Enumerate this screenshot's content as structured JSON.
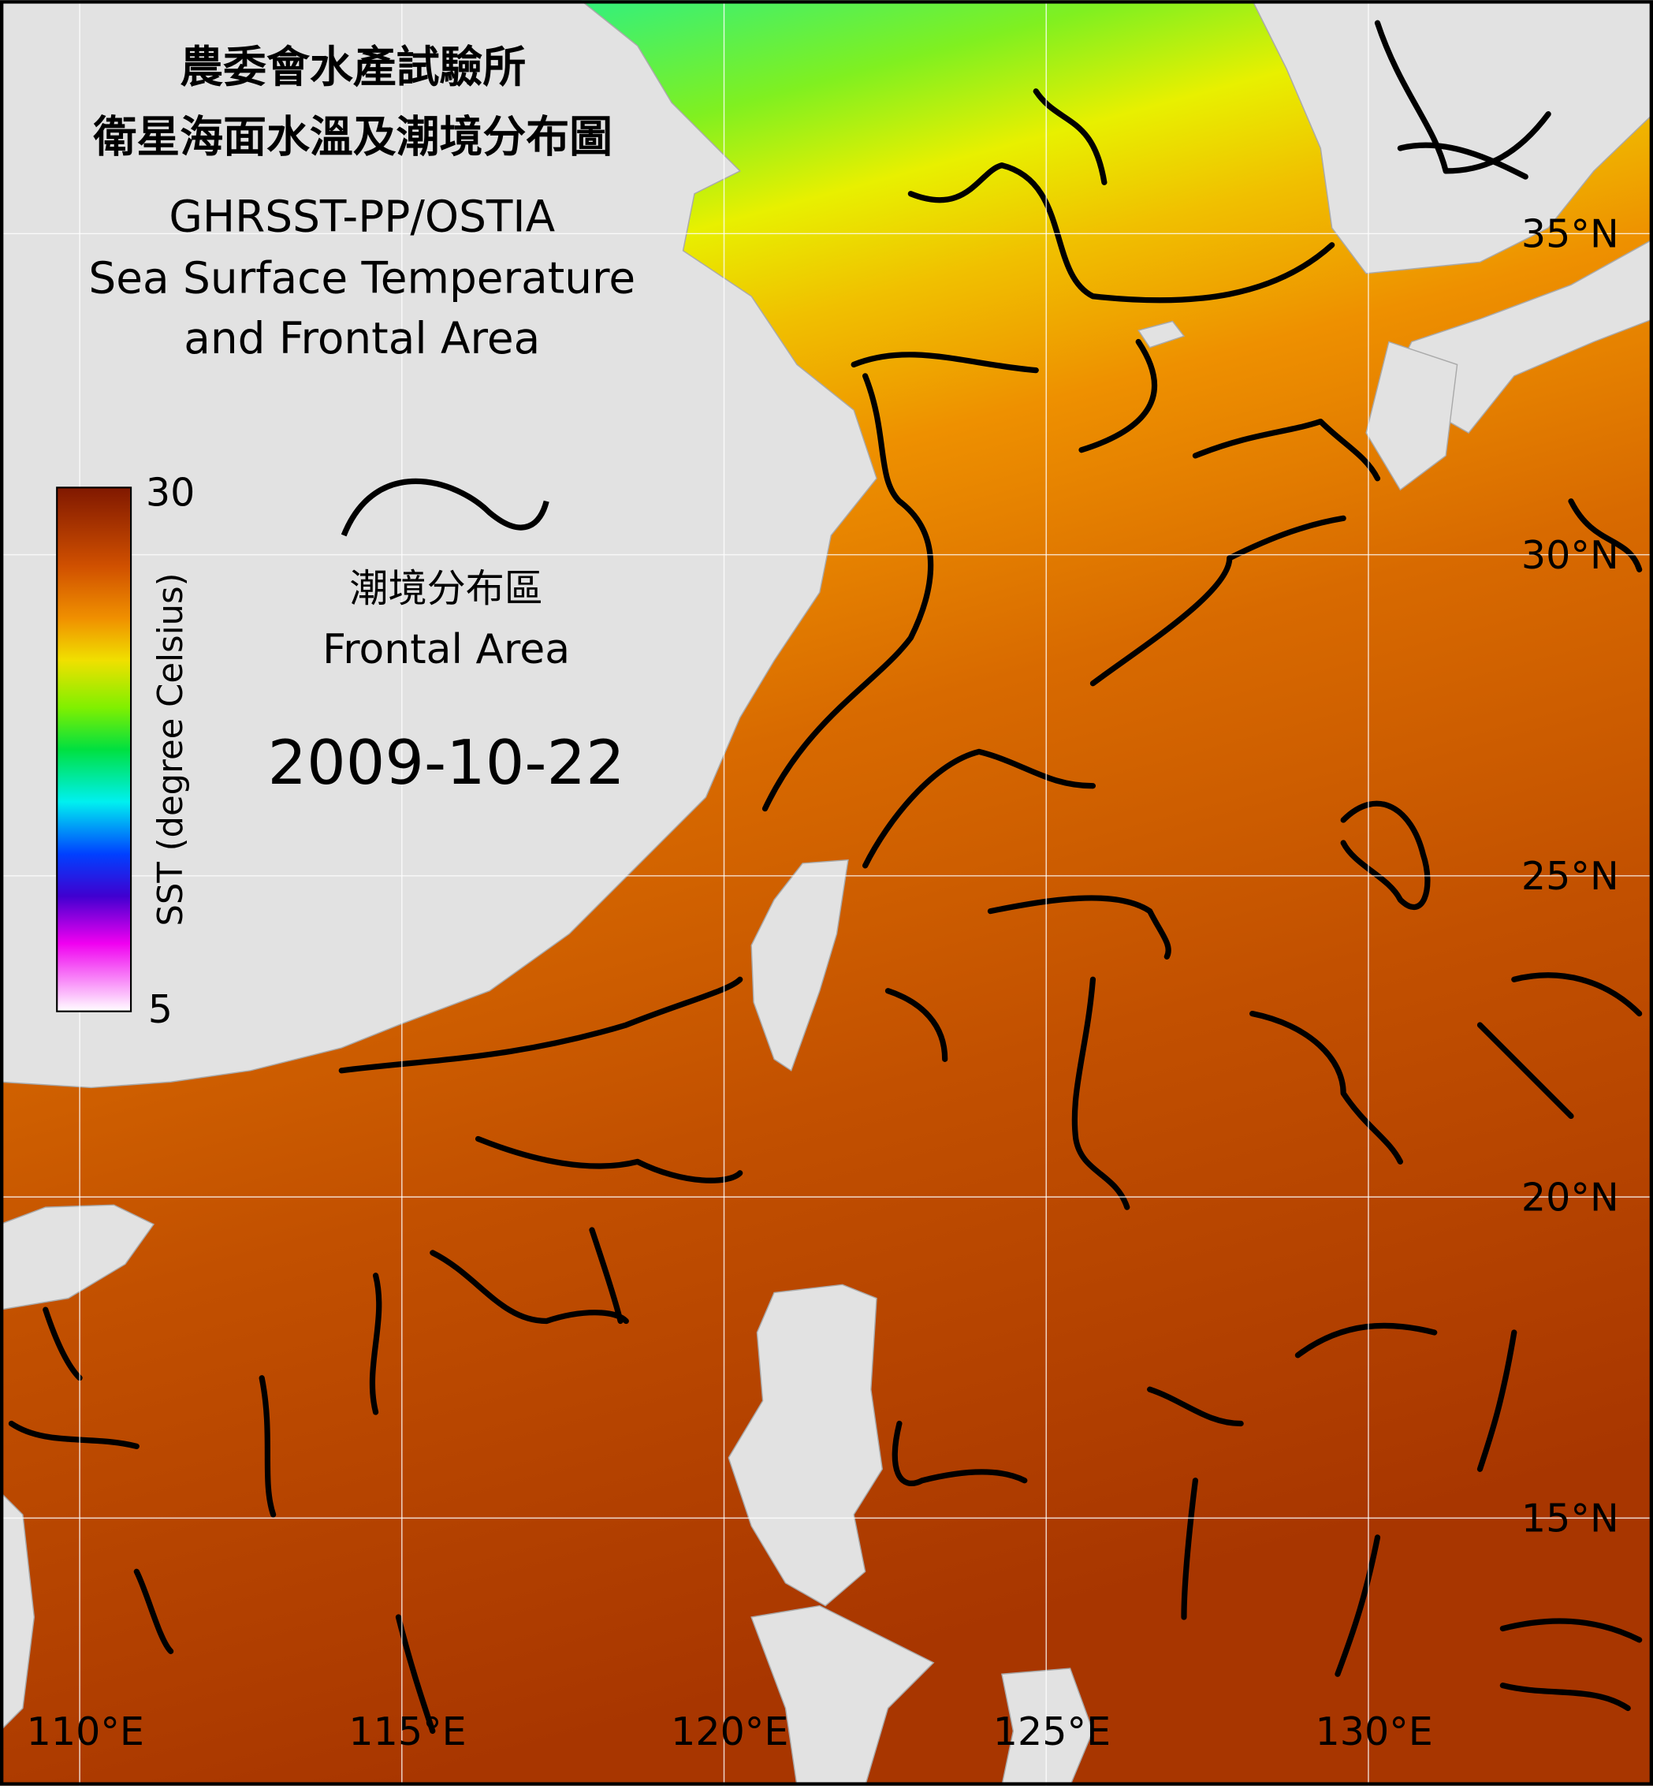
{
  "map": {
    "title_lines": [
      "農委會水產試驗所",
      "衛星海面水溫及潮境分布圖",
      "GHRSST-PP/OSTIA",
      "Sea Surface Temperature",
      "and Frontal Area"
    ],
    "colorbar": {
      "label": "SST (degree Celsius)",
      "max": 30,
      "min": 5
    },
    "front_legend": {
      "label_zh": "潮境分布區",
      "label_en": "Frontal Area"
    },
    "date": "2009-10-22",
    "lon_labels": [
      "110°E",
      "115°E",
      "120°E",
      "125°E",
      "130°E"
    ],
    "lat_labels": [
      "35°N",
      "30°N",
      "25°N",
      "20°N",
      "15°N"
    ]
  }
}
